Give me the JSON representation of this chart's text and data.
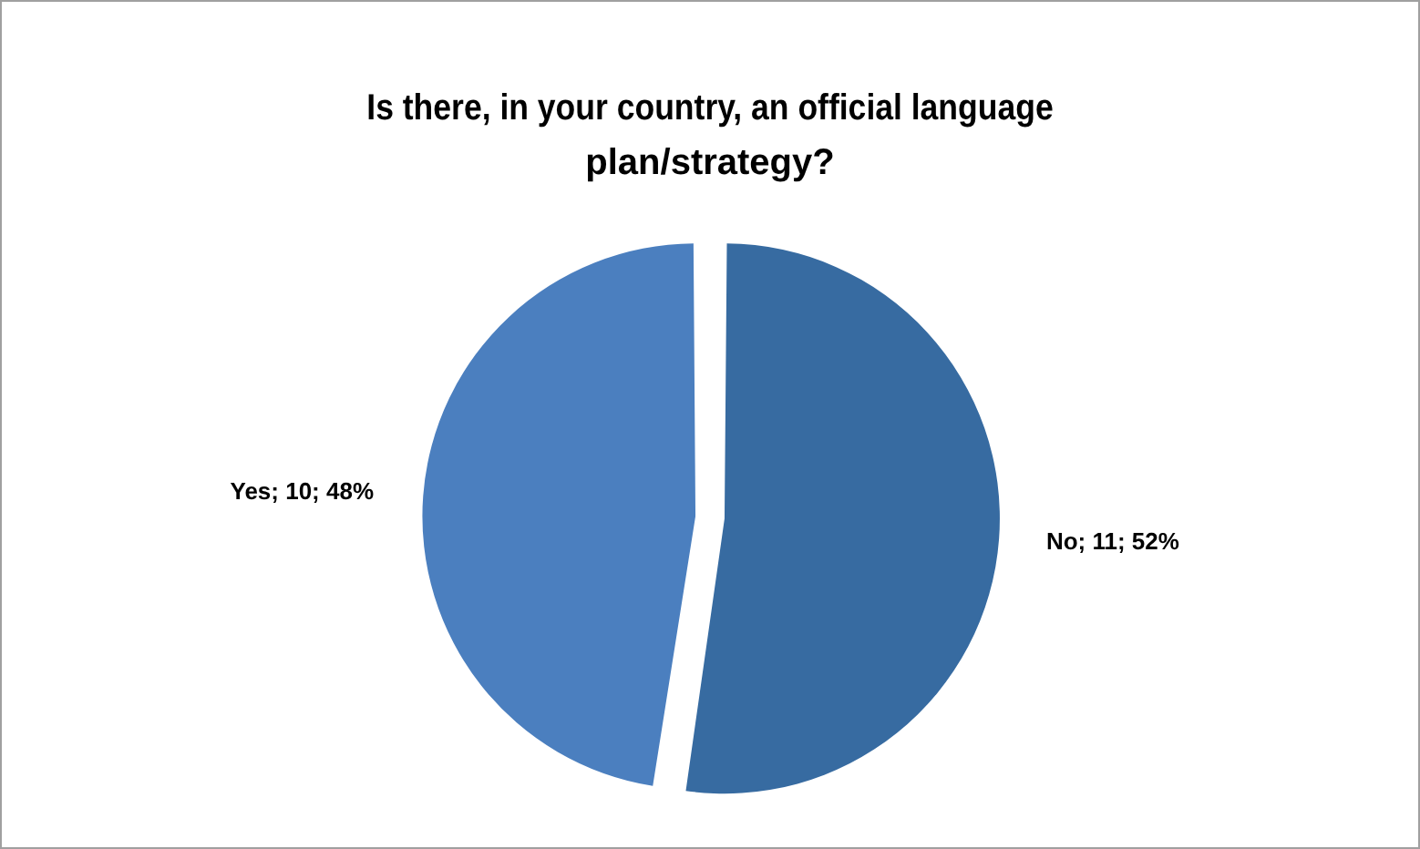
{
  "chart_data": {
    "type": "pie",
    "title": "Is there, in your country, an official language plan/strategy?",
    "categories": [
      "No; 11; 52%",
      "Yes; 10; 48%"
    ],
    "values": [
      11,
      10
    ],
    "colors": [
      "#376ba1",
      "#4b7fbf"
    ],
    "legend": false
  }
}
